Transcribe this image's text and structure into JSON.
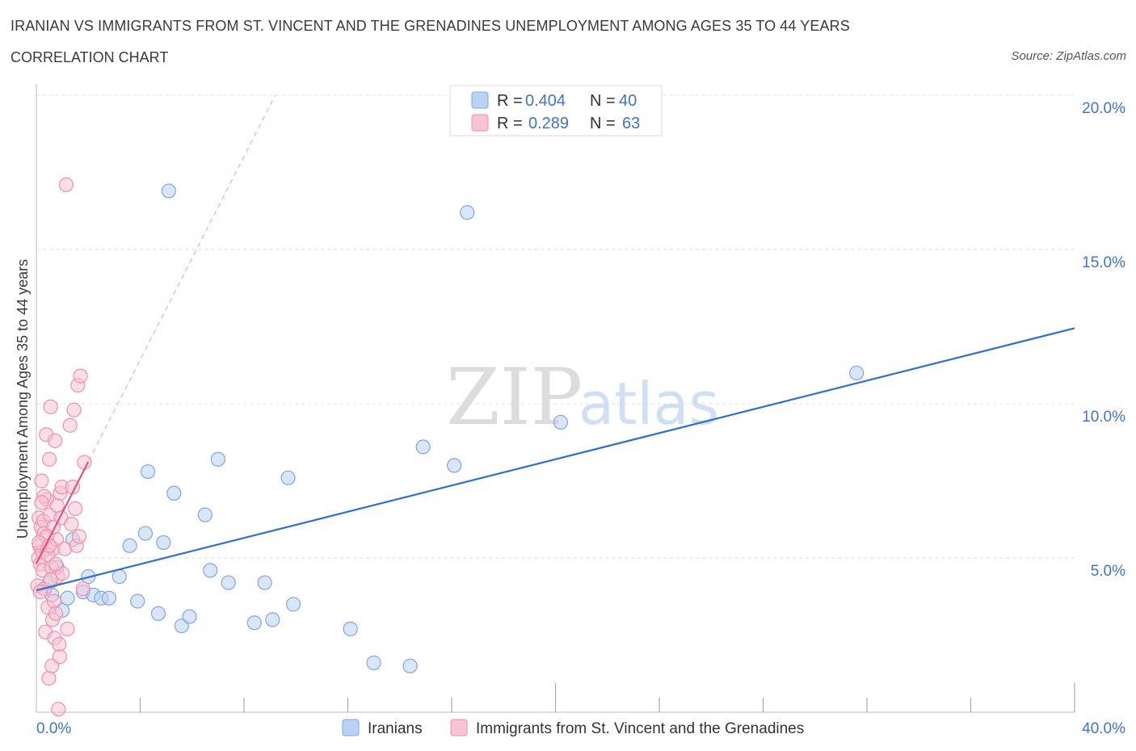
{
  "header": {
    "title": "IRANIAN VS IMMIGRANTS FROM ST. VINCENT AND THE GRENADINES UNEMPLOYMENT AMONG AGES 35 TO 44 YEARS",
    "subtitle": "CORRELATION CHART",
    "source": "Source: ZipAtlas.com"
  },
  "watermark": {
    "zip": "ZIP",
    "atlas": "atlas"
  },
  "colors": {
    "blue_fill": "#b9d2f3",
    "blue_stroke": "#7ea7e0",
    "blue_line": "#2f6fce",
    "pink_fill": "#f8c3d4",
    "pink_stroke": "#ee8fae",
    "pink_line": "#e8507f",
    "axis_text": "#3f74c9",
    "grid": "#dddddd"
  },
  "legend": {
    "rows": [
      {
        "r_label": "R = ",
        "r_value": "0.404",
        "n_label": "N = ",
        "n_value": "40",
        "color": "blue"
      },
      {
        "r_label": "R = ",
        "r_value": "0.289",
        "n_label": "N = ",
        "n_value": "63",
        "color": "pink"
      }
    ]
  },
  "chart_data": {
    "type": "scatter",
    "xlabel": "",
    "ylabel": "Unemployment Among Ages 35 to 44 years",
    "xlim": [
      0,
      40
    ],
    "ylim": [
      0,
      20
    ],
    "x_tick_labels": [
      "0.0%",
      "40.0%"
    ],
    "y_ticks": [
      5,
      10,
      15,
      20
    ],
    "y_tick_labels": [
      "5.0%",
      "10.0%",
      "15.0%",
      "20.0%"
    ],
    "grid": "horizontal dashed",
    "legend_position": "top-center",
    "series": [
      {
        "name": "Iranians",
        "color": "blue",
        "points": [
          [
            0.3,
            4.0
          ],
          [
            0.5,
            4.2
          ],
          [
            0.6,
            3.8
          ],
          [
            0.8,
            4.7
          ],
          [
            1.0,
            3.3
          ],
          [
            1.2,
            3.7
          ],
          [
            1.4,
            5.6
          ],
          [
            1.8,
            3.9
          ],
          [
            2.0,
            4.4
          ],
          [
            2.2,
            3.8
          ],
          [
            2.5,
            3.7
          ],
          [
            2.8,
            3.7
          ],
          [
            3.2,
            4.4
          ],
          [
            3.6,
            5.4
          ],
          [
            3.9,
            3.6
          ],
          [
            4.2,
            5.8
          ],
          [
            4.3,
            7.8
          ],
          [
            4.7,
            3.2
          ],
          [
            4.9,
            5.5
          ],
          [
            5.1,
            16.9
          ],
          [
            5.3,
            7.1
          ],
          [
            5.6,
            2.8
          ],
          [
            5.9,
            3.1
          ],
          [
            6.5,
            6.4
          ],
          [
            6.7,
            4.6
          ],
          [
            7.0,
            8.2
          ],
          [
            7.4,
            4.2
          ],
          [
            8.4,
            2.9
          ],
          [
            8.8,
            4.2
          ],
          [
            9.1,
            3.0
          ],
          [
            9.7,
            7.6
          ],
          [
            9.9,
            3.5
          ],
          [
            12.1,
            2.7
          ],
          [
            13.0,
            1.6
          ],
          [
            14.4,
            1.5
          ],
          [
            14.9,
            8.6
          ],
          [
            16.1,
            8.0
          ],
          [
            16.6,
            16.2
          ],
          [
            20.2,
            9.4
          ],
          [
            31.6,
            11.0
          ]
        ],
        "trend": {
          "x": [
            0,
            40
          ],
          "y": [
            3.95,
            12.45
          ]
        }
      },
      {
        "name": "Immigrants from St. Vincent and the Grenadines",
        "color": "pink",
        "points": [
          [
            0.05,
            4.1
          ],
          [
            0.08,
            5.0
          ],
          [
            0.1,
            6.3
          ],
          [
            0.12,
            5.4
          ],
          [
            0.15,
            4.8
          ],
          [
            0.18,
            6.0
          ],
          [
            0.2,
            7.5
          ],
          [
            0.22,
            5.2
          ],
          [
            0.25,
            4.6
          ],
          [
            0.28,
            6.2
          ],
          [
            0.3,
            5.8
          ],
          [
            0.32,
            4.0
          ],
          [
            0.35,
            2.6
          ],
          [
            0.38,
            9.0
          ],
          [
            0.4,
            6.9
          ],
          [
            0.42,
            5.3
          ],
          [
            0.45,
            3.4
          ],
          [
            0.48,
            1.1
          ],
          [
            0.5,
            8.2
          ],
          [
            0.52,
            6.4
          ],
          [
            0.55,
            9.9
          ],
          [
            0.58,
            4.7
          ],
          [
            0.6,
            1.5
          ],
          [
            0.62,
            3.0
          ],
          [
            0.65,
            5.3
          ],
          [
            0.68,
            3.6
          ],
          [
            0.7,
            2.4
          ],
          [
            0.72,
            8.8
          ],
          [
            0.75,
            3.2
          ],
          [
            0.78,
            5.6
          ],
          [
            0.8,
            6.7
          ],
          [
            0.82,
            4.4
          ],
          [
            0.85,
            0.1
          ],
          [
            0.88,
            2.2
          ],
          [
            0.9,
            1.8
          ],
          [
            0.92,
            7.1
          ],
          [
            0.95,
            6.3
          ],
          [
            0.98,
            7.3
          ],
          [
            1.0,
            4.5
          ],
          [
            1.1,
            5.3
          ],
          [
            1.15,
            17.1
          ],
          [
            1.2,
            2.7
          ],
          [
            1.3,
            9.3
          ],
          [
            1.35,
            6.1
          ],
          [
            1.4,
            7.3
          ],
          [
            1.45,
            9.8
          ],
          [
            1.5,
            6.6
          ],
          [
            1.55,
            5.4
          ],
          [
            1.6,
            10.6
          ],
          [
            1.65,
            5.7
          ],
          [
            1.7,
            10.9
          ],
          [
            1.8,
            4.0
          ],
          [
            1.85,
            8.1
          ],
          [
            0.15,
            3.9
          ],
          [
            0.45,
            5.1
          ],
          [
            0.55,
            4.3
          ],
          [
            0.3,
            7.0
          ],
          [
            0.65,
            6.0
          ],
          [
            0.2,
            6.8
          ],
          [
            0.4,
            5.7
          ],
          [
            0.75,
            4.8
          ],
          [
            0.1,
            5.5
          ],
          [
            0.5,
            5.4
          ]
        ],
        "trend": {
          "x": [
            0,
            2.0
          ],
          "y": [
            4.82,
            8.12
          ]
        },
        "trend_extended": {
          "x": [
            0,
            9.2
          ],
          "y": [
            4.82,
            20.0
          ]
        }
      }
    ]
  },
  "bottom_legend": [
    {
      "label": "Iranians",
      "color": "blue"
    },
    {
      "label": "Immigrants from St. Vincent and the Grenadines",
      "color": "pink"
    }
  ]
}
